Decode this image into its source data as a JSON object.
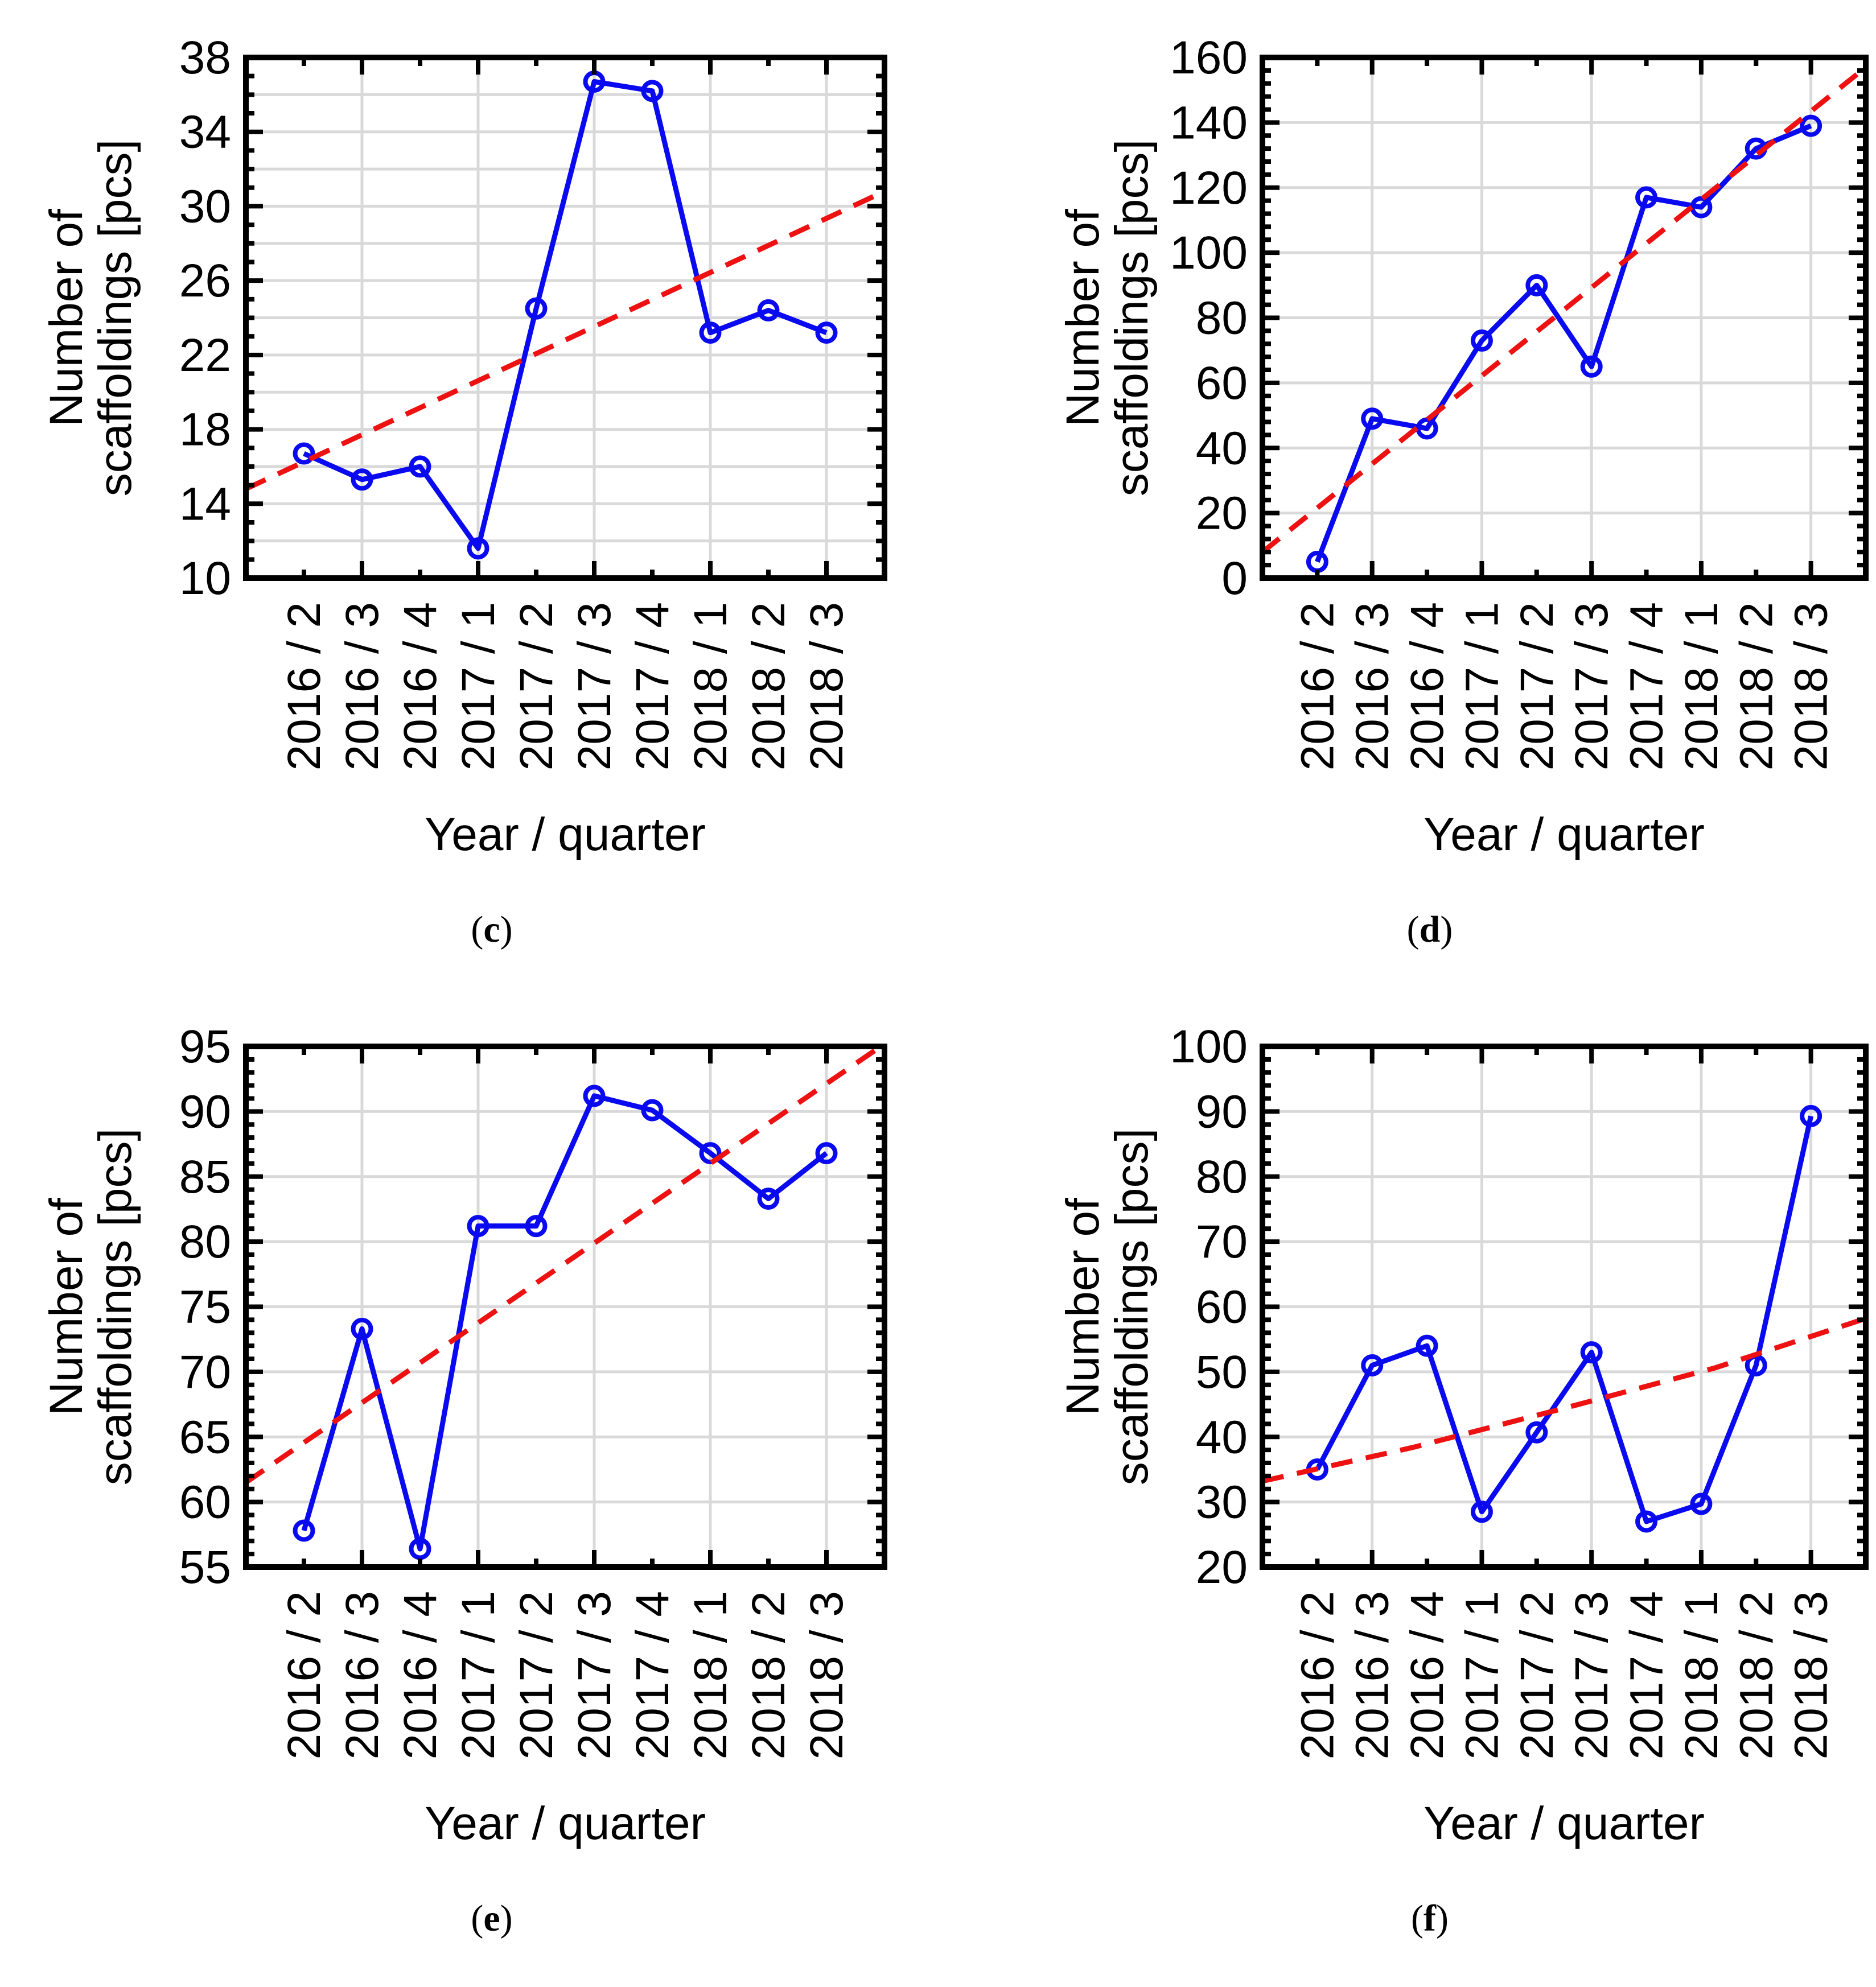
{
  "figure": {
    "xlabel": "Year / quarter",
    "ylabel_line1": "Number of",
    "ylabel_line2": "scaffoldings [pcs]"
  },
  "style": {
    "data_color": "#0a0af0",
    "trend_color": "#ee1111",
    "grid_color": "#d9d9d9",
    "axis_color": "#000000"
  },
  "chart_data": [
    {
      "type": "line",
      "caption": {
        "open": "(",
        "letter": "c",
        "close": ")"
      },
      "xlabel": "Year / quarter",
      "ylabel_line1": "Number of",
      "ylabel_line2": "scaffoldings [pcs]",
      "categories": [
        "2016 / 2",
        "2016 / 3",
        "2016 / 4",
        "2017 / 1",
        "2017 / 2",
        "2017 / 3",
        "2017 / 4",
        "2018 / 1",
        "2018 / 2",
        "2018 / 3"
      ],
      "series": [
        {
          "name": "quarterly-data",
          "style": "solid-markers",
          "values": [
            16.7,
            15.3,
            16.0,
            11.6,
            24.5,
            36.7,
            36.2,
            23.2,
            24.4,
            23.2
          ]
        },
        {
          "name": "linear-trend",
          "style": "dashed",
          "points": [
            {
              "x": 0,
              "y": 14.8
            },
            {
              "x": 1,
              "y": 30.8
            }
          ]
        }
      ],
      "ylim": [
        10,
        38
      ],
      "ytick_label_step": 4,
      "grid_step": 2,
      "minor_step": 1,
      "grid": true,
      "legend": "none"
    },
    {
      "type": "line",
      "caption": {
        "open": "(",
        "letter": "d",
        "close": ")"
      },
      "xlabel": "Year / quarter",
      "ylabel_line1": "Number of",
      "ylabel_line2": "scaffoldings [pcs]",
      "categories": [
        "2016 / 2",
        "2016 / 3",
        "2016 / 4",
        "2017 / 1",
        "2017 / 2",
        "2017 / 3",
        "2017 / 4",
        "2018 / 1",
        "2018 / 2",
        "2018 / 3"
      ],
      "series": [
        {
          "name": "quarterly-data",
          "style": "solid-markers",
          "values": [
            5,
            49,
            46,
            73,
            90,
            65,
            117,
            114,
            132,
            139
          ]
        },
        {
          "name": "linear-trend",
          "style": "dashed",
          "points": [
            {
              "x": 0,
              "y": 8
            },
            {
              "x": 1,
              "y": 157
            }
          ]
        }
      ],
      "ylim": [
        0,
        160
      ],
      "ytick_label_step": 20,
      "grid_step": 20,
      "minor_step": 4,
      "grid": true,
      "legend": "none"
    },
    {
      "type": "line",
      "caption": {
        "open": "(",
        "letter": "e",
        "close": ")"
      },
      "xlabel": "Year / quarter",
      "ylabel_line1": "Number of",
      "ylabel_line2": "scaffoldings [pcs]",
      "categories": [
        "2016 / 2",
        "2016 / 3",
        "2016 / 4",
        "2017 / 1",
        "2017 / 2",
        "2017 / 3",
        "2017 / 4",
        "2018 / 1",
        "2018 / 2",
        "2018 / 3"
      ],
      "series": [
        {
          "name": "quarterly-data",
          "style": "solid-markers",
          "values": [
            57.8,
            73.3,
            56.4,
            81.2,
            81.2,
            91.2,
            90.1,
            86.8,
            83.3,
            86.8
          ]
        },
        {
          "name": "linear-trend",
          "style": "dashed",
          "points": [
            {
              "x": 0,
              "y": 61.5
            },
            {
              "x": 1,
              "y": 95.2
            }
          ]
        }
      ],
      "ylim": [
        55,
        95
      ],
      "ytick_label_step": 5,
      "grid_step": 5,
      "minor_step": 1,
      "grid": true,
      "legend": "none"
    },
    {
      "type": "line",
      "caption": {
        "open": "(",
        "letter": "f",
        "close": ")"
      },
      "xlabel": "Year / quarter",
      "ylabel_line1": "Number of",
      "ylabel_line2": "scaffoldings [pcs]",
      "categories": [
        "2016 / 2",
        "2016 / 3",
        "2016 / 4",
        "2017 / 1",
        "2017 / 2",
        "2017 / 3",
        "2017 / 4",
        "2018 / 1",
        "2018 / 2",
        "2018 / 3"
      ],
      "series": [
        {
          "name": "quarterly-data",
          "style": "solid-markers",
          "values": [
            35,
            51,
            54,
            28.5,
            40.7,
            53,
            27,
            29.7,
            51,
            89.3
          ]
        },
        {
          "name": "exp-trend",
          "style": "dashed",
          "points": [
            {
              "x": 0,
              "y": 33.2
            },
            {
              "x": 0.25,
              "y": 38.4
            },
            {
              "x": 0.5,
              "y": 44.4
            },
            {
              "x": 0.75,
              "y": 50.6
            },
            {
              "x": 1,
              "y": 58.2
            }
          ]
        }
      ],
      "ylim": [
        20,
        100
      ],
      "ytick_label_step": 10,
      "grid_step": 10,
      "minor_step": 2,
      "grid": true,
      "legend": "none"
    }
  ]
}
